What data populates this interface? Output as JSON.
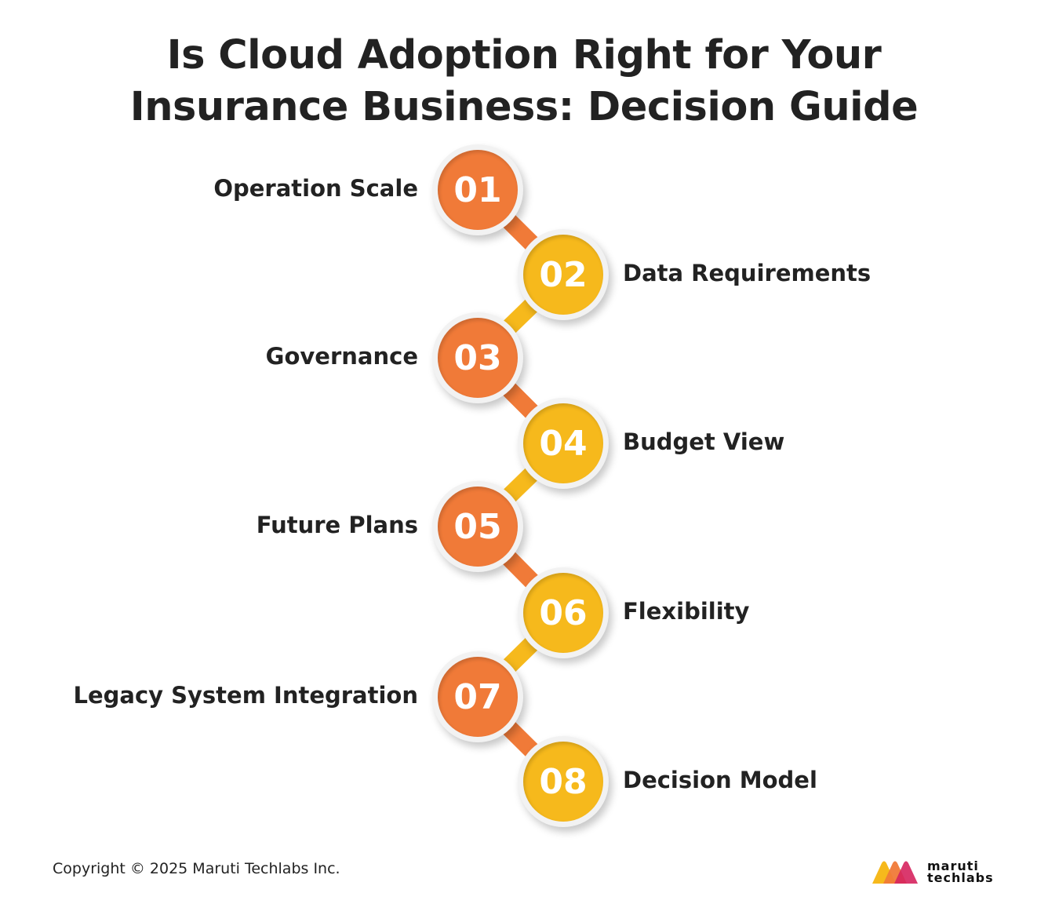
{
  "title_line1": "Is Cloud Adoption Right for Your",
  "title_line2": "Insurance Business: Decision Guide",
  "colors": {
    "orange": "#f07a38",
    "yellow": "#f6b91c",
    "text": "#222222"
  },
  "steps": [
    {
      "number": "01",
      "label": "Operation Scale",
      "side": "left",
      "color": "orange"
    },
    {
      "number": "02",
      "label": "Data Requirements",
      "side": "right",
      "color": "yellow"
    },
    {
      "number": "03",
      "label": "Governance",
      "side": "left",
      "color": "orange"
    },
    {
      "number": "04",
      "label": "Budget View",
      "side": "right",
      "color": "yellow"
    },
    {
      "number": "05",
      "label": "Future Plans",
      "side": "left",
      "color": "orange"
    },
    {
      "number": "06",
      "label": "Flexibility",
      "side": "right",
      "color": "yellow"
    },
    {
      "number": "07",
      "label": "Legacy System Integration",
      "side": "left",
      "color": "orange"
    },
    {
      "number": "08",
      "label": "Decision Model",
      "side": "right",
      "color": "yellow"
    }
  ],
  "footer": {
    "copyright": "Copyright © 2025 Maruti Techlabs Inc.",
    "logo_line1": "maruti",
    "logo_line2": "techlabs"
  }
}
